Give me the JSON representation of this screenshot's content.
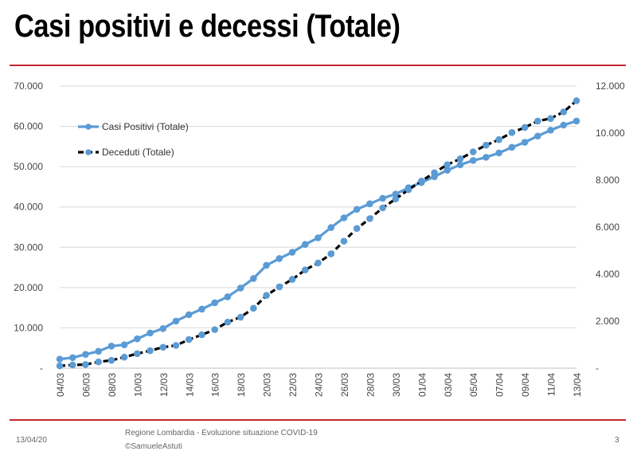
{
  "slide": {
    "title": "Casi positivi e decessi (Totale)",
    "footer_date": "13/04/20",
    "footer_source": "Regione Lombardia - Evoluzione situazione COVID-19",
    "footer_credit": "©SamueleAstuti",
    "page_number": "3"
  },
  "colors": {
    "casi": "#5b9bd5",
    "decessi": "#000000",
    "grid": "#d9d9d9",
    "rule": "#c0282e"
  },
  "chart_data": {
    "type": "line",
    "title": "",
    "legend_position": "top-left",
    "grid": true,
    "x": [
      "04/03",
      "05/03",
      "06/03",
      "07/03",
      "08/03",
      "09/03",
      "10/03",
      "11/03",
      "12/03",
      "13/03",
      "14/03",
      "15/03",
      "16/03",
      "17/03",
      "18/03",
      "19/03",
      "20/03",
      "21/03",
      "22/03",
      "23/03",
      "24/03",
      "25/03",
      "26/03",
      "27/03",
      "28/03",
      "29/03",
      "30/03",
      "31/03",
      "01/04",
      "02/04",
      "03/04",
      "04/04",
      "05/04",
      "06/04",
      "07/04",
      "08/04",
      "09/04",
      "10/04",
      "11/04",
      "12/04",
      "13/04"
    ],
    "x_tick_labels": [
      "04/03",
      "06/03",
      "08/03",
      "10/03",
      "12/03",
      "14/03",
      "16/03",
      "18/03",
      "20/03",
      "22/03",
      "24/03",
      "26/03",
      "28/03",
      "30/03",
      "01/04",
      "03/04",
      "05/04",
      "07/04",
      "09/04",
      "11/04",
      "13/04"
    ],
    "y_left": {
      "min": 0,
      "max": 70000,
      "ticks": [
        "-",
        "10.000",
        "20.000",
        "30.000",
        "40.000",
        "50.000",
        "60.000",
        "70.000"
      ]
    },
    "y_right": {
      "min": 0,
      "max": 12000,
      "ticks": [
        "-",
        "2.000",
        "4.000",
        "6.000",
        "8.000",
        "10.000",
        "12.000"
      ]
    },
    "series": [
      {
        "name": "Casi Positivi (Totale)",
        "axis": "left",
        "values": [
          2251,
          2612,
          3420,
          4189,
          5469,
          5791,
          7280,
          8725,
          9820,
          11685,
          13272,
          14649,
          16220,
          17713,
          19884,
          22264,
          25515,
          27206,
          28761,
          30703,
          32346,
          34889,
          37298,
          39415,
          40801,
          42161,
          43208,
          44773,
          46065,
          47520,
          49118,
          50455,
          51534,
          52325,
          53414,
          54802,
          56048,
          57592,
          59052,
          60314,
          61326
        ]
      },
      {
        "name": "Deceduti (Totale)",
        "axis": "right",
        "values": [
          98,
          135,
          154,
          267,
          333,
          468,
          617,
          744,
          890,
          966,
          1218,
          1420,
          1640,
          1959,
          2168,
          2549,
          3095,
          3456,
          3776,
          4178,
          4474,
          4861,
          5402,
          5944,
          6360,
          6818,
          7199,
          7593,
          7960,
          8311,
          8656,
          8905,
          9202,
          9484,
          9722,
          10022,
          10238,
          10511,
          10621,
          10901,
          11377
        ]
      }
    ]
  }
}
